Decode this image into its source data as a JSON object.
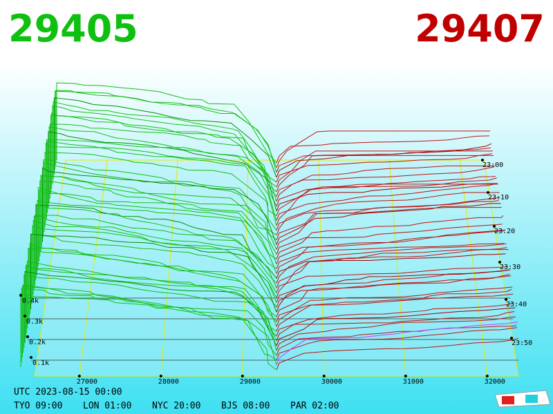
{
  "header": {
    "bid": "29405",
    "ask": "29407"
  },
  "axes": {
    "price_ticks": [
      27000,
      28000,
      29000,
      30000,
      31000,
      32000
    ],
    "depth_ticks": [
      "0.4k",
      "0.3k",
      "0.2k",
      "0.1k"
    ],
    "time_ticks": [
      "23:00",
      "23:10",
      "23:20",
      "23:30",
      "23:40",
      "23:50"
    ]
  },
  "footer": {
    "utc": "UTC 2023-08-15 00:00",
    "zones": [
      "TYO 09:00",
      "LON 01:00",
      "NYC 20:00",
      "BJS 08:00",
      "PAR 02:00"
    ]
  }
}
